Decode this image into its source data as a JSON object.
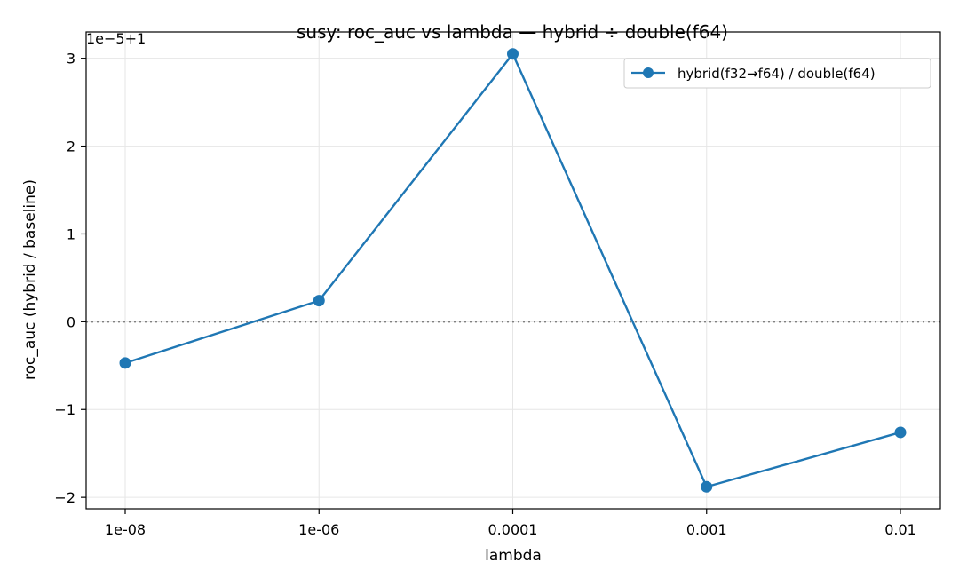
{
  "chart_data": {
    "type": "line",
    "title": "susy: roc_auc vs lambda — hybrid ÷ double(f64)",
    "xlabel": "lambda",
    "ylabel": "roc_auc (hybrid / baseline)",
    "offset_text": "1e−5+1",
    "categories": [
      "1e-08",
      "1e-06",
      "0.0001",
      "0.001",
      "0.01"
    ],
    "yticks": [
      -2,
      -1,
      0,
      1,
      2,
      3
    ],
    "ytick_labels": [
      "−2",
      "−1",
      "0",
      "1",
      "2",
      "3"
    ],
    "ylim": [
      -2.13,
      3.3
    ],
    "reference_line_y": 0,
    "grid": true,
    "legend_position": "top-right",
    "series": [
      {
        "name": "hybrid(f32→f64) / double(f64)",
        "values": [
          -0.47,
          0.24,
          3.05,
          -1.88,
          -1.26
        ],
        "color": "#1f77b4"
      }
    ],
    "colors": {
      "line": "#1f77b4",
      "reference": "#808080",
      "grid": "#e6e6e6",
      "axis": "#000000"
    }
  }
}
